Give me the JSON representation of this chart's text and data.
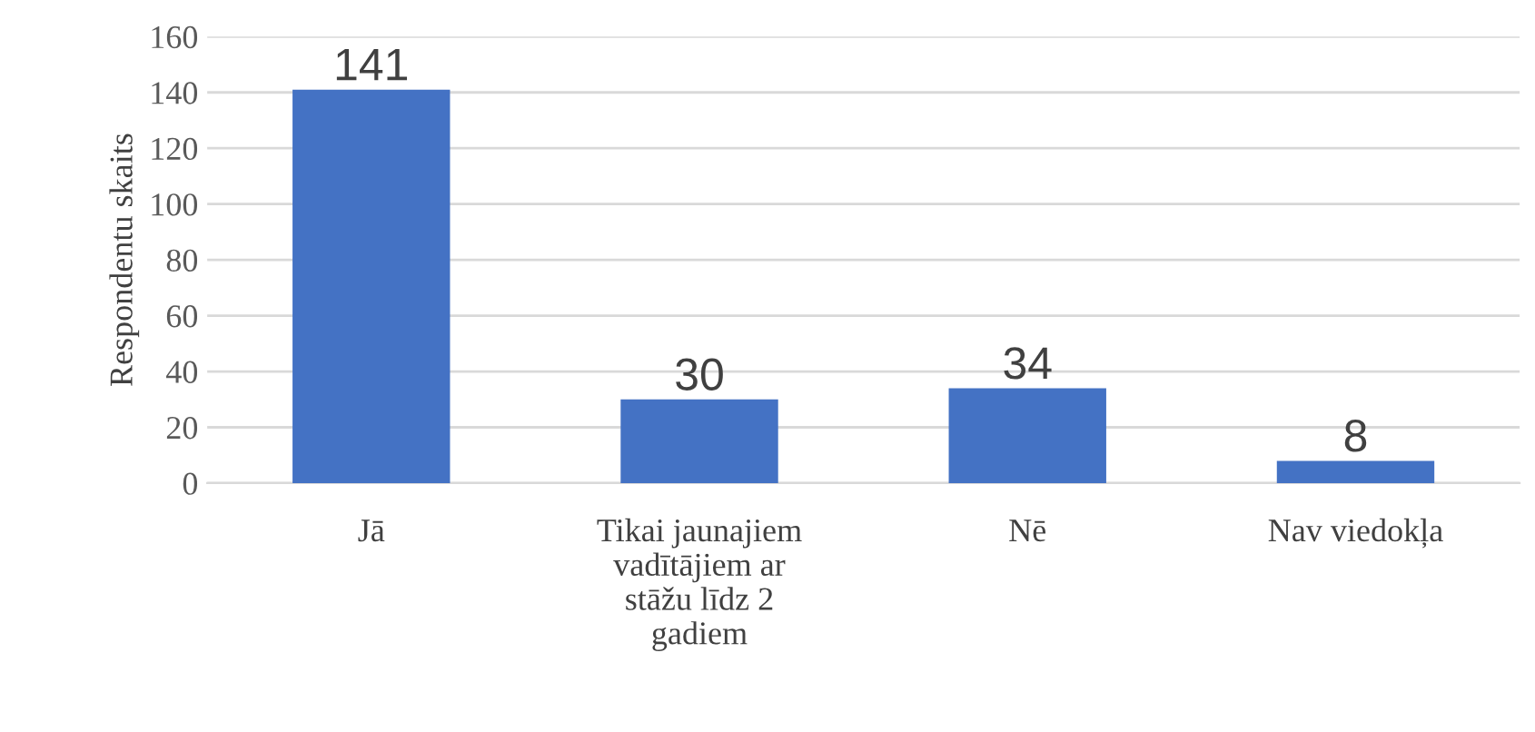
{
  "chart_data": {
    "type": "bar",
    "ylabel": "Respondentu skaits",
    "categories": [
      "Jā",
      "Tikai jaunajiem\nvadītājiem ar\nstāžu līdz 2\ngadiem",
      "Nē",
      "Nav viedokļa"
    ],
    "values": [
      141,
      30,
      34,
      8
    ],
    "color": "#4472c4",
    "ylim": [
      0,
      160
    ],
    "yticks": [
      0,
      20,
      40,
      60,
      80,
      100,
      120,
      140,
      160
    ],
    "grid": "y",
    "data_labels": true
  }
}
